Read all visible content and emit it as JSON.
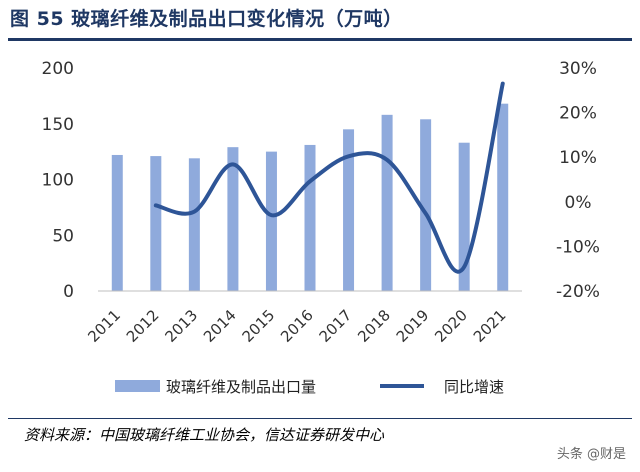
{
  "header": {
    "title": "图 55 玻璃纤维及制品出口变化情况（万吨）"
  },
  "footer": {
    "source": "资料来源：中国玻璃纤维工业协会，信达证券研发中心",
    "watermark": "头条 @财是"
  },
  "chart_data": {
    "type": "bar+line",
    "title": "图 55 玻璃纤维及制品出口变化情况（万吨）",
    "categories": [
      "2011",
      "2012",
      "2013",
      "2014",
      "2015",
      "2016",
      "2017",
      "2018",
      "2019",
      "2020",
      "2021"
    ],
    "series": [
      {
        "name": "玻璃纤维及制品出口量",
        "type": "bar",
        "axis": "left",
        "color": "#8faadc",
        "values": [
          122,
          121,
          119,
          129,
          125,
          131,
          145,
          158,
          154,
          133,
          168
        ]
      },
      {
        "name": "同比增速",
        "type": "line",
        "axis": "right",
        "color": "#2e5597",
        "values": [
          null,
          -0.8,
          -2.2,
          8.4,
          -3.0,
          4.6,
          10.2,
          9.4,
          -2.6,
          -14.6,
          26.5
        ]
      }
    ],
    "y_left": {
      "min": 0,
      "max": 200,
      "ticks": [
        0,
        50,
        100,
        150,
        200
      ]
    },
    "y_right": {
      "min": -20,
      "max": 30,
      "ticks": [
        "-20%",
        "-10%",
        "0%",
        "10%",
        "20%",
        "30%"
      ]
    },
    "grid": false,
    "legend": "bottom"
  }
}
